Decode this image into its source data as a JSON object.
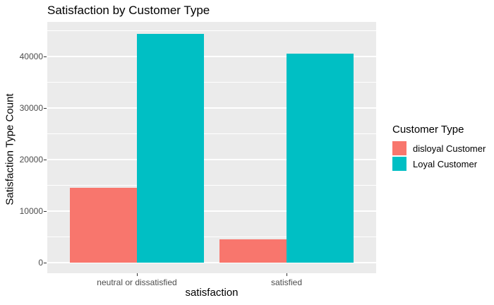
{
  "chart_data": {
    "type": "bar",
    "title": "Satisfaction by Customer Type",
    "xlabel": "satisfaction",
    "ylabel": "Satisfaction Type Count",
    "categories": [
      "neutral or dissatisfied",
      "satisfied"
    ],
    "series": [
      {
        "name": "disloyal Customer",
        "color": "#F8766D",
        "values": [
          14489,
          4492
        ]
      },
      {
        "name": "Loyal Customer",
        "color": "#00BFC4",
        "values": [
          44390,
          40533
        ]
      }
    ],
    "legend": {
      "title": "Customer Type",
      "position": "right"
    },
    "y_ticks": [
      0,
      10000,
      20000,
      30000,
      40000
    ],
    "y_tick_labels": [
      "0",
      "10000",
      "20000",
      "30000",
      "40000"
    ],
    "y_minor_ticks": [
      5000,
      15000,
      25000,
      35000,
      45000
    ],
    "ylim": [
      0,
      45000
    ],
    "grid": true,
    "style": {
      "panel_background": "#EBEBEB",
      "gridline_color": "#FFFFFF",
      "tick_text_color": "#4D4D4D",
      "bar_layout": "dodge"
    }
  }
}
